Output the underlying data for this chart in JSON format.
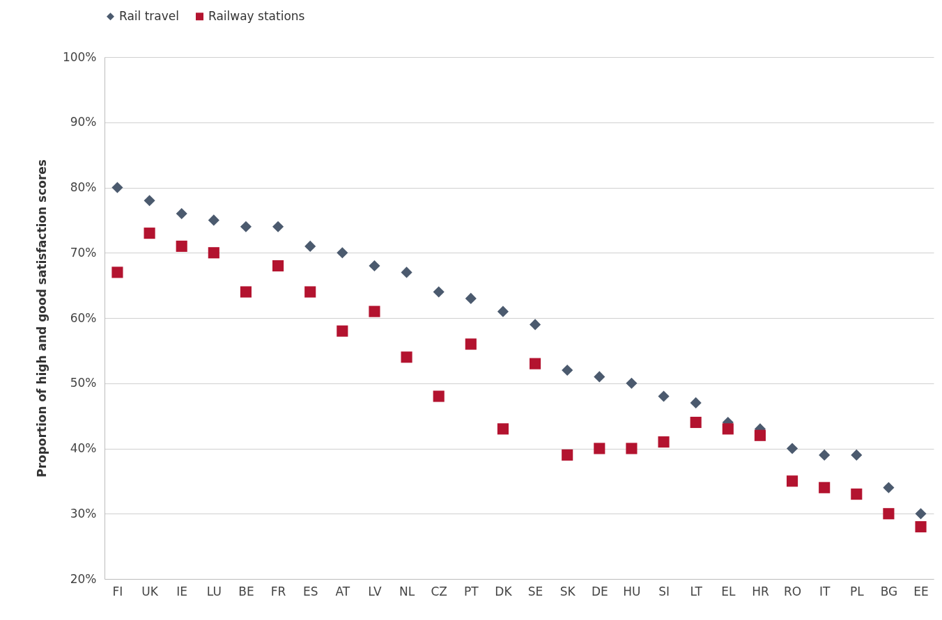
{
  "chart_data": {
    "type": "scatter",
    "ylabel": "Proportion of high and good satisfaction scores",
    "categories": [
      "FI",
      "UK",
      "IE",
      "LU",
      "BE",
      "FR",
      "ES",
      "AT",
      "LV",
      "NL",
      "CZ",
      "PT",
      "DK",
      "SE",
      "SK",
      "DE",
      "HU",
      "SI",
      "LT",
      "EL",
      "HR",
      "RO",
      "IT",
      "PL",
      "BG",
      "EE"
    ],
    "series": [
      {
        "name": "Rail travel",
        "color": "#4b5a6e",
        "marker": "diamond",
        "values": [
          80,
          78,
          76,
          75,
          74,
          74,
          71,
          70,
          68,
          67,
          64,
          63,
          61,
          59,
          52,
          51,
          50,
          48,
          47,
          44,
          43,
          40,
          39,
          39,
          34,
          30
        ]
      },
      {
        "name": "Railway stations",
        "color": "#b3132f",
        "marker": "square",
        "values": [
          67,
          73,
          71,
          70,
          64,
          68,
          64,
          58,
          61,
          54,
          48,
          56,
          43,
          53,
          39,
          40,
          40,
          41,
          44,
          43,
          42,
          35,
          34,
          33,
          30,
          28
        ]
      }
    ],
    "ylim": [
      20,
      100
    ],
    "yticks": [
      {
        "value": 20,
        "label": "20%"
      },
      {
        "value": 30,
        "label": "30%"
      },
      {
        "value": 40,
        "label": "40%"
      },
      {
        "value": 50,
        "label": "50%"
      },
      {
        "value": 60,
        "label": "60%"
      },
      {
        "value": 70,
        "label": "70%"
      },
      {
        "value": 80,
        "label": "80%"
      },
      {
        "value": 90,
        "label": "90%"
      },
      {
        "value": 100,
        "label": "100%"
      }
    ],
    "grid": "y",
    "legend": "top"
  }
}
